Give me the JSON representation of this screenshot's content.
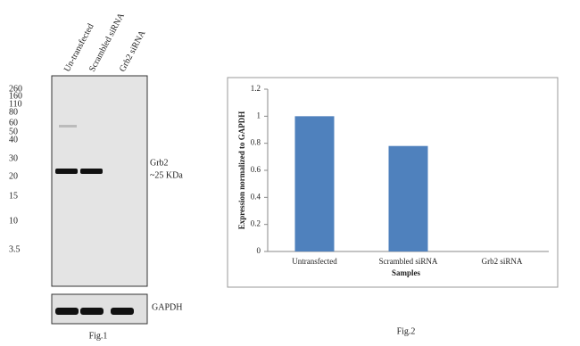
{
  "blot": {
    "lanes": [
      "Un-transfected",
      "Scrambled siRNA",
      "Grb2 siRNA"
    ],
    "markers": [
      "260",
      "160",
      "110",
      "80",
      "60",
      "50",
      "40",
      "30",
      "20",
      "15",
      "10",
      "3.5"
    ],
    "band_label": [
      "Grb2",
      "~25 KDa"
    ],
    "loading_label": "GAPDH",
    "caption": "Fig.1"
  },
  "chart_data": {
    "type": "bar",
    "categories": [
      "Untransfected",
      "Scrambled siRNA",
      "Grb2 siRNA"
    ],
    "values": [
      1,
      0.78,
      0
    ],
    "color": "#4f81bd",
    "ylim": [
      0,
      1.2
    ],
    "yticks": [
      0,
      0.2,
      0.4,
      0.6,
      0.8,
      1,
      1.2
    ],
    "xlabel": "Samples",
    "ylabel": "Expression normalized to GAPDH",
    "caption": "Fig.2"
  }
}
